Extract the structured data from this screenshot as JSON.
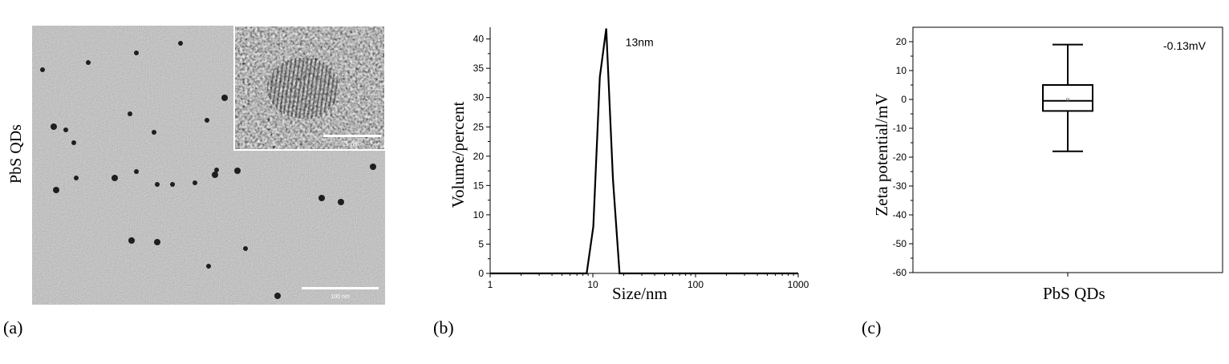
{
  "panel_a": {
    "label": "(a)",
    "side_label": "PbS QDs",
    "scale_bar_main": "100 nm",
    "scale_bar_inset": "5 nm"
  },
  "panel_b": {
    "label": "(b)"
  },
  "panel_c": {
    "label": "(c)"
  },
  "chart_data": [
    {
      "type": "line",
      "xlabel": "Size/nm",
      "ylabel": "Volume/percent",
      "xscale": "log",
      "xlim": [
        1,
        1000
      ],
      "ylim": [
        0,
        42
      ],
      "x_ticks": [
        1,
        10,
        100,
        1000
      ],
      "x_tick_labels": [
        "1",
        "10",
        "100",
        "1000"
      ],
      "y_ticks": [
        0,
        5,
        10,
        15,
        20,
        25,
        30,
        35,
        40
      ],
      "annotation": "13nm",
      "grid": false,
      "series": [
        {
          "x": [
            1,
            8.7,
            10.1,
            11.7,
            13.5,
            15.7,
            18.2,
            1000
          ],
          "y": [
            0,
            0,
            8,
            33.5,
            41.8,
            16,
            0,
            0
          ]
        }
      ]
    },
    {
      "type": "box",
      "xlabel": "PbS QDs",
      "ylabel": "Zeta potential/mV",
      "ylim": [
        -60,
        25
      ],
      "y_ticks": [
        -60,
        -50,
        -40,
        -30,
        -20,
        -10,
        0,
        10,
        20
      ],
      "annotation": "-0.13mV",
      "grid": false,
      "box": {
        "min": -18,
        "q1": -4,
        "median": -0.5,
        "q3": 5,
        "max": 19,
        "mean": -0.13
      }
    }
  ]
}
